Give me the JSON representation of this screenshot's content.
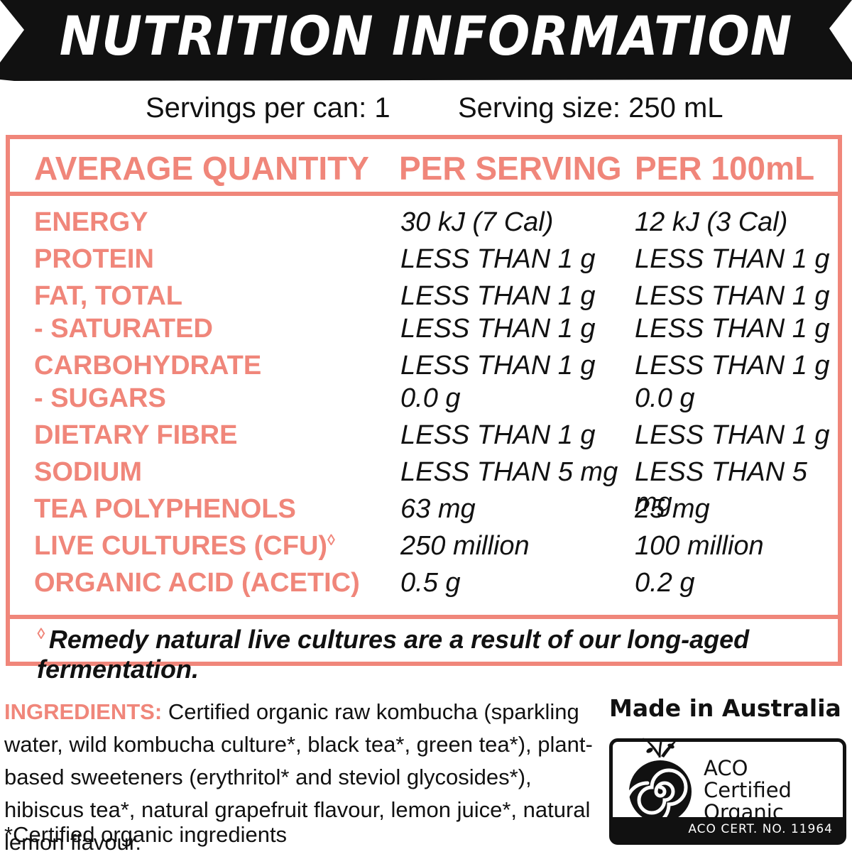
{
  "banner": {
    "title": "NUTRITION INFORMATION"
  },
  "serving": {
    "servings_per_can": "Servings per can: 1",
    "serving_size": "Serving size: 250 mL"
  },
  "table": {
    "headers": {
      "label": "AVERAGE QUANTITY",
      "per_serving": "PER SERVING",
      "per_100ml": "PER 100mL"
    },
    "rows": [
      {
        "label": "ENERGY",
        "per_serving": "30 kJ (7 Cal)",
        "per_100ml": "12 kJ (3 Cal)"
      },
      {
        "label": "PROTEIN",
        "per_serving": "LESS THAN 1 g",
        "per_100ml": "LESS THAN 1 g"
      },
      {
        "label": "FAT, TOTAL",
        "per_serving": "LESS THAN 1 g",
        "per_100ml": "LESS THAN 1 g"
      },
      {
        "label": "- SATURATED",
        "per_serving": "LESS THAN 1 g",
        "per_100ml": "LESS THAN 1 g"
      },
      {
        "label": "CARBOHYDRATE",
        "per_serving": "LESS THAN 1 g",
        "per_100ml": "LESS THAN 1 g"
      },
      {
        "label": "- SUGARS",
        "per_serving": "0.0 g",
        "per_100ml": "0.0 g"
      },
      {
        "label": "DIETARY FIBRE",
        "per_serving": "LESS THAN 1 g",
        "per_100ml": "LESS THAN 1 g"
      },
      {
        "label": "SODIUM",
        "per_serving": "LESS THAN 5 mg",
        "per_100ml": "LESS THAN 5 mg"
      },
      {
        "label": "TEA POLYPHENOLS",
        "per_serving": "63 mg",
        "per_100ml": "25 mg"
      },
      {
        "label": "LIVE CULTURES (CFU)",
        "marker": "◊",
        "per_serving": "250 million",
        "per_100ml": "100 million"
      },
      {
        "label": "ORGANIC ACID (ACETIC)",
        "per_serving": "0.5 g",
        "per_100ml": "0.2 g"
      }
    ],
    "footnote_marker": "◊",
    "footnote": "Remedy natural live cultures are a result of our long-aged fermentation."
  },
  "ingredients": {
    "heading": "INGREDIENTS:",
    "text": "Certified organic raw kombucha (sparkling water, wild kombucha culture*, black tea*, green tea*), plant-based sweeteners (erythritol* and steviol glycosides*), hibiscus tea*, natural grapefruit flavour, lemon juice*, natural lemon flavour.",
    "note": "*Certified organic ingredients"
  },
  "origin": {
    "made_in": "Made in Australia"
  },
  "certification": {
    "icon": "aco-swirl-icon",
    "lines": [
      "ACO",
      "Certified",
      "Organic"
    ],
    "cert_number": "ACO CERT. NO. 11964"
  },
  "colors": {
    "accent": "#f0867a",
    "ink": "#111111",
    "background": "#ffffff"
  }
}
